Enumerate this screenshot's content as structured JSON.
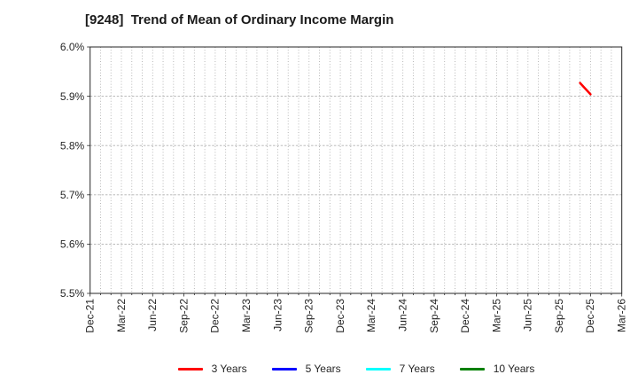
{
  "colors": {
    "background": "#ffffff",
    "axis": "#262626",
    "grid": "#b0b0b0",
    "text": "#262626",
    "title_text": "#1a1a1a"
  },
  "chart_data": {
    "type": "line",
    "title": "[9248]  Trend of Mean of Ordinary Income Margin",
    "xlabel": "",
    "ylabel": "",
    "ylim": [
      5.5,
      6.0
    ],
    "y_tick_step": 0.1,
    "y_tick_labels": [
      "5.5%",
      "5.6%",
      "5.7%",
      "5.8%",
      "5.9%",
      "6.0%"
    ],
    "grid": true,
    "grid_style": "dotted",
    "legend_position": "bottom",
    "x_axis": {
      "start_month": "Dec-21",
      "end_month": "Mar-26",
      "minor_gridlines": "monthly",
      "label_every_months": 3,
      "tick_labels": [
        "Dec-21",
        "Mar-22",
        "Jun-22",
        "Sep-22",
        "Dec-22",
        "Mar-23",
        "Jun-23",
        "Sep-23",
        "Dec-23",
        "Mar-24",
        "Jun-24",
        "Sep-24",
        "Dec-24",
        "Mar-25",
        "Jun-25",
        "Sep-25",
        "Dec-25",
        "Mar-26"
      ]
    },
    "series": [
      {
        "name": "3 Years",
        "color": "#ff0000",
        "points": [
          {
            "x": "Nov-25",
            "y": 5.927
          },
          {
            "x": "Dec-25",
            "y": 5.904
          }
        ]
      },
      {
        "name": "5 Years",
        "color": "#0000ff",
        "points": []
      },
      {
        "name": "7 Years",
        "color": "#00ffff",
        "points": []
      },
      {
        "name": "10 Years",
        "color": "#008000",
        "points": []
      }
    ]
  }
}
